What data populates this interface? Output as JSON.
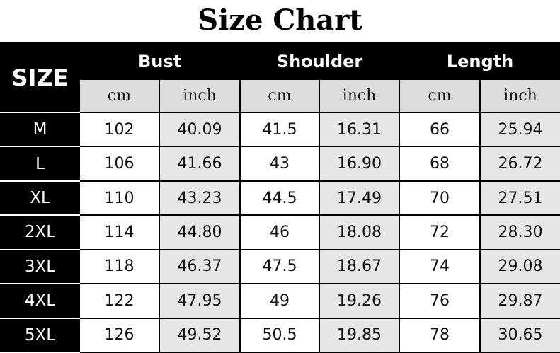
{
  "title": "Size Chart",
  "size_header": "SIZE",
  "groups": [
    "Bust",
    "Shoulder",
    "Length"
  ],
  "units": [
    "cm",
    "inch",
    "cm",
    "inch",
    "cm",
    "inch"
  ],
  "rows": [
    {
      "size": "M",
      "values": [
        "102",
        "40.09",
        "41.5",
        "16.31",
        "66",
        "25.94"
      ]
    },
    {
      "size": "L",
      "values": [
        "106",
        "41.66",
        "43",
        "16.90",
        "68",
        "26.72"
      ]
    },
    {
      "size": "XL",
      "values": [
        "110",
        "43.23",
        "44.5",
        "17.49",
        "70",
        "27.51"
      ]
    },
    {
      "size": "2XL",
      "values": [
        "114",
        "44.80",
        "46",
        "18.08",
        "72",
        "28.30"
      ]
    },
    {
      "size": "3XL",
      "values": [
        "118",
        "46.37",
        "47.5",
        "18.67",
        "74",
        "29.08"
      ]
    },
    {
      "size": "4XL",
      "values": [
        "122",
        "47.95",
        "49",
        "19.26",
        "76",
        "29.87"
      ]
    },
    {
      "size": "5XL",
      "values": [
        "126",
        "49.52",
        "50.5",
        "19.85",
        "78",
        "30.65"
      ]
    }
  ]
}
